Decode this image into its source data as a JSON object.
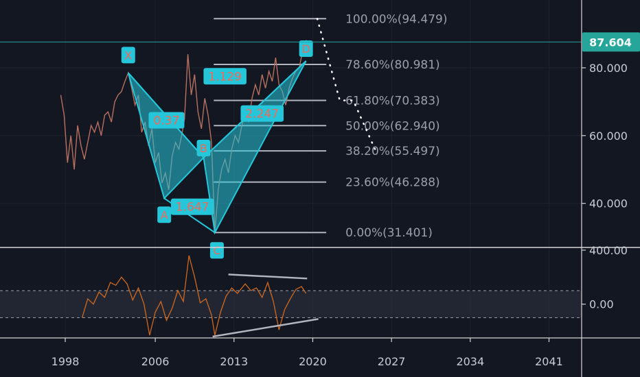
{
  "chart_data": {
    "type": "line",
    "price_axis": {
      "ticks": [
        "80.000",
        "60.000",
        "40.000"
      ],
      "tick_values": [
        80,
        60,
        40
      ],
      "range": [
        27,
        100
      ]
    },
    "osc_axis": {
      "ticks": [
        "400.00",
        "0.00"
      ],
      "tick_values": [
        400,
        0
      ],
      "range": [
        -250,
        420
      ],
      "bands": [
        100,
        -100
      ]
    },
    "time_axis": {
      "ticks": [
        "1998",
        "2006",
        "2013",
        "2020",
        "2027",
        "2034",
        "2041"
      ],
      "tick_values": [
        1998,
        2006,
        2013,
        2020,
        2027,
        2034,
        2041
      ],
      "range": [
        1992.2,
        2043.9
      ]
    },
    "current_price": {
      "label": "87.604",
      "value": 87.604,
      "color": "#26a69a"
    },
    "fib_levels": [
      {
        "label": "100.00%(94.479)",
        "value": 94.479
      },
      {
        "label": "78.60%(80.981)",
        "value": 80.981
      },
      {
        "label": "61.80%(70.383)",
        "value": 70.383
      },
      {
        "label": "50.00%(62.940)",
        "value": 62.94
      },
      {
        "label": "38.20%(55.497)",
        "value": 55.497
      },
      {
        "label": "23.60%(46.288)",
        "value": 46.288
      },
      {
        "label": "0.00%(31.401)",
        "value": 31.401
      }
    ],
    "pattern_points": [
      {
        "label": "X",
        "date": 2003.6,
        "price": 78.5
      },
      {
        "label": "A",
        "date": 2006.8,
        "price": 41.5
      },
      {
        "label": "B",
        "date": 2010.3,
        "price": 53.5
      },
      {
        "label": "C",
        "date": 2011.3,
        "price": 31.4
      },
      {
        "label": "D",
        "date": 2019.4,
        "price": 82.0
      }
    ],
    "ratios": [
      {
        "label": "0.37",
        "date": 2007.0,
        "price": 64.5
      },
      {
        "label": "1.647",
        "date": 2009.3,
        "price": 39.0
      },
      {
        "label": "1.129",
        "date": 2012.2,
        "price": 77.5
      },
      {
        "label": "2.247",
        "date": 2015.5,
        "price": 66.5
      }
    ],
    "price_series": [
      [
        1997.6,
        72
      ],
      [
        1997.9,
        66
      ],
      [
        1998.2,
        52
      ],
      [
        1998.5,
        60
      ],
      [
        1998.8,
        50
      ],
      [
        1999.1,
        63
      ],
      [
        1999.4,
        57
      ],
      [
        1999.7,
        53
      ],
      [
        2000.0,
        58
      ],
      [
        2000.3,
        63
      ],
      [
        2000.6,
        61
      ],
      [
        2000.9,
        64
      ],
      [
        2001.2,
        60
      ],
      [
        2001.5,
        66
      ],
      [
        2001.8,
        67
      ],
      [
        2002.1,
        64
      ],
      [
        2002.4,
        70
      ],
      [
        2002.7,
        72
      ],
      [
        2003.0,
        73
      ],
      [
        2003.3,
        76
      ],
      [
        2003.6,
        78.5
      ],
      [
        2003.9,
        74
      ],
      [
        2004.2,
        69
      ],
      [
        2004.5,
        72
      ],
      [
        2004.8,
        61
      ],
      [
        2005.1,
        64
      ],
      [
        2005.4,
        57
      ],
      [
        2005.7,
        62
      ],
      [
        2006.0,
        52
      ],
      [
        2006.3,
        55
      ],
      [
        2006.6,
        46
      ],
      [
        2006.9,
        49
      ],
      [
        2007.2,
        44
      ],
      [
        2007.5,
        54
      ],
      [
        2007.8,
        58
      ],
      [
        2008.1,
        56
      ],
      [
        2008.4,
        61
      ],
      [
        2008.6,
        65
      ],
      [
        2008.9,
        84
      ],
      [
        2009.2,
        72
      ],
      [
        2009.5,
        78
      ],
      [
        2009.8,
        67
      ],
      [
        2010.1,
        62
      ],
      [
        2010.4,
        71
      ],
      [
        2010.7,
        66
      ],
      [
        2011.0,
        58
      ],
      [
        2011.3,
        31.4
      ],
      [
        2011.6,
        44
      ],
      [
        2011.9,
        50
      ],
      [
        2012.2,
        53
      ],
      [
        2012.5,
        49
      ],
      [
        2012.8,
        56
      ],
      [
        2013.1,
        60
      ],
      [
        2013.4,
        58
      ],
      [
        2013.7,
        63
      ],
      [
        2014.0,
        67
      ],
      [
        2014.3,
        64
      ],
      [
        2014.6,
        71
      ],
      [
        2014.9,
        75
      ],
      [
        2015.2,
        72
      ],
      [
        2015.5,
        78
      ],
      [
        2015.8,
        74
      ],
      [
        2016.1,
        79
      ],
      [
        2016.4,
        76
      ],
      [
        2016.7,
        83
      ],
      [
        2017.0,
        75
      ],
      [
        2017.3,
        73
      ],
      [
        2017.6,
        69
      ],
      [
        2017.9,
        74
      ],
      [
        2018.2,
        77
      ],
      [
        2018.5,
        79
      ],
      [
        2018.8,
        80
      ],
      [
        2019.1,
        85
      ],
      [
        2019.4,
        88
      ],
      [
        2019.7,
        87.6
      ]
    ],
    "projection": [
      [
        2020.4,
        94.479
      ],
      [
        2022.4,
        70.383
      ],
      [
        2023.6,
        70.383
      ],
      [
        2025.6,
        55.497
      ]
    ],
    "osc_series": [
      [
        1999.5,
        -100
      ],
      [
        2000.0,
        40
      ],
      [
        2000.5,
        0
      ],
      [
        2001.0,
        90
      ],
      [
        2001.5,
        50
      ],
      [
        2002.0,
        160
      ],
      [
        2002.5,
        140
      ],
      [
        2003.0,
        200
      ],
      [
        2003.5,
        150
      ],
      [
        2004.0,
        30
      ],
      [
        2004.5,
        120
      ],
      [
        2005.0,
        0
      ],
      [
        2005.5,
        -230
      ],
      [
        2006.0,
        -60
      ],
      [
        2006.5,
        20
      ],
      [
        2007.0,
        -120
      ],
      [
        2007.5,
        -30
      ],
      [
        2008.0,
        100
      ],
      [
        2008.5,
        20
      ],
      [
        2009.0,
        360
      ],
      [
        2009.5,
        200
      ],
      [
        2010.0,
        10
      ],
      [
        2010.5,
        40
      ],
      [
        2011.0,
        -80
      ],
      [
        2011.3,
        -230
      ],
      [
        2011.8,
        -60
      ],
      [
        2012.3,
        60
      ],
      [
        2012.8,
        120
      ],
      [
        2013.3,
        80
      ],
      [
        2014.0,
        150
      ],
      [
        2014.5,
        100
      ],
      [
        2015.0,
        120
      ],
      [
        2015.5,
        50
      ],
      [
        2016.0,
        160
      ],
      [
        2016.5,
        20
      ],
      [
        2017.0,
        -190
      ],
      [
        2017.5,
        -40
      ],
      [
        2018.0,
        40
      ],
      [
        2018.5,
        110
      ],
      [
        2019.0,
        130
      ],
      [
        2019.4,
        80
      ]
    ],
    "osc_trendlines": [
      {
        "from": [
          2012.5,
          220
        ],
        "to": [
          2019.5,
          190
        ]
      },
      {
        "from": [
          2011.1,
          -240
        ],
        "to": [
          2020.5,
          -110
        ]
      }
    ]
  }
}
